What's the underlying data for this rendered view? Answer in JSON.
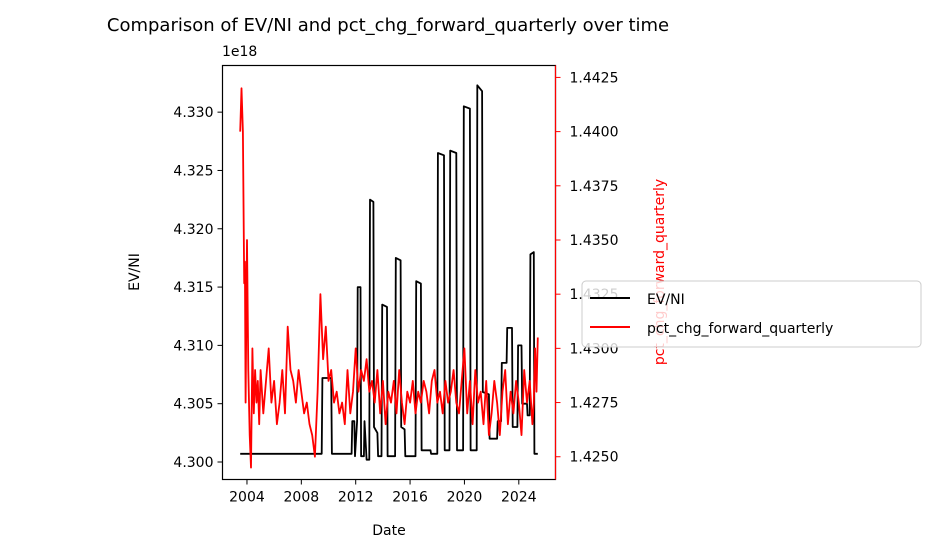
{
  "chart_data": {
    "type": "line",
    "title": "Comparison of EV/NI and pct_chg_forward_quarterly over time",
    "xlabel": "Date",
    "ylabel_left": "EV/NI",
    "ylabel_right": "pct_chg_forward_quarterly",
    "left_axis_offset": "1e18",
    "x_ticks": [
      "2004",
      "2008",
      "2012",
      "2016",
      "2020",
      "2024"
    ],
    "xlim": [
      2002.2,
      2026.7
    ],
    "ylim_left": [
      4.2985,
      4.334
    ],
    "ylim_right": [
      1.42395,
      1.44305
    ],
    "y_ticks_left": [
      "4.300",
      "4.305",
      "4.310",
      "4.315",
      "4.320",
      "4.325",
      "4.330"
    ],
    "y_ticks_right": [
      "1.4250",
      "1.4275",
      "1.4300",
      "1.4325",
      "1.4350",
      "1.4375",
      "1.4400",
      "1.4425"
    ],
    "legend_position": "right-outside",
    "series": [
      {
        "name": "EV/NI",
        "axis": "left",
        "color": "#000000",
        "points": [
          [
            2003.5,
            4.3007
          ],
          [
            2009.5,
            4.3007
          ],
          [
            2009.55,
            4.3072
          ],
          [
            2010.2,
            4.3072
          ],
          [
            2010.25,
            4.3007
          ],
          [
            2011.7,
            4.3007
          ],
          [
            2011.75,
            4.3035
          ],
          [
            2011.9,
            4.3035
          ],
          [
            2011.95,
            4.3005
          ],
          [
            2012.1,
            4.3035
          ],
          [
            2012.15,
            4.315
          ],
          [
            2012.35,
            4.315
          ],
          [
            2012.4,
            4.3005
          ],
          [
            2012.6,
            4.3005
          ],
          [
            2012.65,
            4.3035
          ],
          [
            2012.8,
            4.3002
          ],
          [
            2013.0,
            4.3002
          ],
          [
            2013.05,
            4.3225
          ],
          [
            2013.3,
            4.3223
          ],
          [
            2013.35,
            4.303
          ],
          [
            2013.6,
            4.3025
          ],
          [
            2013.65,
            4.3005
          ],
          [
            2013.9,
            4.3005
          ],
          [
            2013.95,
            4.3135
          ],
          [
            2014.3,
            4.3133
          ],
          [
            2014.35,
            4.3005
          ],
          [
            2014.9,
            4.3005
          ],
          [
            2014.95,
            4.3175
          ],
          [
            2015.3,
            4.3173
          ],
          [
            2015.35,
            4.303
          ],
          [
            2015.6,
            4.3028
          ],
          [
            2015.65,
            4.3005
          ],
          [
            2016.0,
            4.3005
          ],
          [
            2016.05,
            4.3005
          ],
          [
            2016.4,
            4.3005
          ],
          [
            2016.45,
            4.3155
          ],
          [
            2016.8,
            4.3153
          ],
          [
            2016.85,
            4.301
          ],
          [
            2017.5,
            4.301
          ],
          [
            2017.55,
            4.3007
          ],
          [
            2018.0,
            4.3007
          ],
          [
            2018.05,
            4.3265
          ],
          [
            2018.5,
            4.3263
          ],
          [
            2018.55,
            4.301
          ],
          [
            2018.9,
            4.301
          ],
          [
            2018.95,
            4.3267
          ],
          [
            2019.4,
            4.3265
          ],
          [
            2019.45,
            4.301
          ],
          [
            2019.9,
            4.301
          ],
          [
            2019.95,
            4.3305
          ],
          [
            2020.4,
            4.3303
          ],
          [
            2020.45,
            4.301
          ],
          [
            2020.9,
            4.301
          ],
          [
            2020.95,
            4.3323
          ],
          [
            2021.3,
            4.3318
          ],
          [
            2021.35,
            4.306
          ],
          [
            2021.8,
            4.3058
          ],
          [
            2021.85,
            4.302
          ],
          [
            2022.4,
            4.302
          ],
          [
            2022.45,
            4.3035
          ],
          [
            2022.7,
            4.3035
          ],
          [
            2022.75,
            4.3085
          ],
          [
            2023.1,
            4.3085
          ],
          [
            2023.15,
            4.3115
          ],
          [
            2023.5,
            4.3115
          ],
          [
            2023.55,
            4.303
          ],
          [
            2023.9,
            4.303
          ],
          [
            2023.95,
            4.31
          ],
          [
            2024.2,
            4.31
          ],
          [
            2024.25,
            4.305
          ],
          [
            2024.6,
            4.305
          ],
          [
            2024.65,
            4.304
          ],
          [
            2024.8,
            4.304
          ],
          [
            2024.85,
            4.3178
          ],
          [
            2025.1,
            4.318
          ],
          [
            2025.15,
            4.3007
          ],
          [
            2025.4,
            4.3007
          ]
        ]
      },
      {
        "name": "pct_chg_forward_quarterly",
        "axis": "right",
        "color": "#ff0000",
        "points": [
          [
            2003.5,
            1.44
          ],
          [
            2003.6,
            1.442
          ],
          [
            2003.7,
            1.44
          ],
          [
            2003.8,
            1.433
          ],
          [
            2003.85,
            1.434
          ],
          [
            2003.9,
            1.4275
          ],
          [
            2004.0,
            1.435
          ],
          [
            2004.1,
            1.429
          ],
          [
            2004.2,
            1.426
          ],
          [
            2004.3,
            1.4245
          ],
          [
            2004.4,
            1.43
          ],
          [
            2004.5,
            1.427
          ],
          [
            2004.6,
            1.429
          ],
          [
            2004.7,
            1.4275
          ],
          [
            2004.8,
            1.4285
          ],
          [
            2004.9,
            1.4265
          ],
          [
            2005.0,
            1.429
          ],
          [
            2005.2,
            1.427
          ],
          [
            2005.4,
            1.4285
          ],
          [
            2005.6,
            1.43
          ],
          [
            2005.8,
            1.4275
          ],
          [
            2006.0,
            1.4285
          ],
          [
            2006.2,
            1.4265
          ],
          [
            2006.4,
            1.4275
          ],
          [
            2006.6,
            1.429
          ],
          [
            2006.8,
            1.427
          ],
          [
            2007.0,
            1.431
          ],
          [
            2007.2,
            1.429
          ],
          [
            2007.4,
            1.4285
          ],
          [
            2007.6,
            1.4275
          ],
          [
            2007.8,
            1.429
          ],
          [
            2008.0,
            1.428
          ],
          [
            2008.2,
            1.427
          ],
          [
            2008.4,
            1.4275
          ],
          [
            2008.6,
            1.4265
          ],
          [
            2008.8,
            1.426
          ],
          [
            2009.0,
            1.425
          ],
          [
            2009.2,
            1.428
          ],
          [
            2009.4,
            1.4325
          ],
          [
            2009.6,
            1.4295
          ],
          [
            2009.8,
            1.431
          ],
          [
            2010.0,
            1.4285
          ],
          [
            2010.2,
            1.429
          ],
          [
            2010.4,
            1.4275
          ],
          [
            2010.6,
            1.428
          ],
          [
            2010.8,
            1.427
          ],
          [
            2011.0,
            1.4275
          ],
          [
            2011.2,
            1.4265
          ],
          [
            2011.4,
            1.429
          ],
          [
            2011.6,
            1.427
          ],
          [
            2011.8,
            1.428
          ],
          [
            2012.0,
            1.43
          ],
          [
            2012.2,
            1.428
          ],
          [
            2012.4,
            1.429
          ],
          [
            2012.6,
            1.4285
          ],
          [
            2012.8,
            1.4295
          ],
          [
            2013.0,
            1.428
          ],
          [
            2013.2,
            1.4285
          ],
          [
            2013.4,
            1.4275
          ],
          [
            2013.6,
            1.429
          ],
          [
            2013.8,
            1.427
          ],
          [
            2014.0,
            1.4285
          ],
          [
            2014.2,
            1.4265
          ],
          [
            2014.4,
            1.428
          ],
          [
            2014.6,
            1.4275
          ],
          [
            2014.8,
            1.4285
          ],
          [
            2015.0,
            1.427
          ],
          [
            2015.2,
            1.429
          ],
          [
            2015.4,
            1.4275
          ],
          [
            2015.6,
            1.4265
          ],
          [
            2015.8,
            1.428
          ],
          [
            2016.0,
            1.4275
          ],
          [
            2016.2,
            1.4285
          ],
          [
            2016.4,
            1.427
          ],
          [
            2016.6,
            1.428
          ],
          [
            2016.8,
            1.4275
          ],
          [
            2017.0,
            1.4285
          ],
          [
            2017.2,
            1.428
          ],
          [
            2017.4,
            1.427
          ],
          [
            2017.6,
            1.4285
          ],
          [
            2017.8,
            1.429
          ],
          [
            2018.0,
            1.4275
          ],
          [
            2018.2,
            1.428
          ],
          [
            2018.4,
            1.427
          ],
          [
            2018.6,
            1.4285
          ],
          [
            2018.8,
            1.4275
          ],
          [
            2019.0,
            1.428
          ],
          [
            2019.2,
            1.429
          ],
          [
            2019.4,
            1.4275
          ],
          [
            2019.6,
            1.427
          ],
          [
            2019.8,
            1.4285
          ],
          [
            2020.0,
            1.43
          ],
          [
            2020.2,
            1.427
          ],
          [
            2020.4,
            1.4285
          ],
          [
            2020.6,
            1.4265
          ],
          [
            2020.8,
            1.429
          ],
          [
            2021.0,
            1.4275
          ],
          [
            2021.2,
            1.428
          ],
          [
            2021.4,
            1.4265
          ],
          [
            2021.6,
            1.4285
          ],
          [
            2021.8,
            1.426
          ],
          [
            2022.0,
            1.427
          ],
          [
            2022.2,
            1.4285
          ],
          [
            2022.4,
            1.4275
          ],
          [
            2022.6,
            1.426
          ],
          [
            2022.8,
            1.428
          ],
          [
            2023.0,
            1.429
          ],
          [
            2023.2,
            1.4265
          ],
          [
            2023.4,
            1.428
          ],
          [
            2023.6,
            1.427
          ],
          [
            2023.8,
            1.4285
          ],
          [
            2024.0,
            1.4275
          ],
          [
            2024.2,
            1.426
          ],
          [
            2024.4,
            1.429
          ],
          [
            2024.6,
            1.4275
          ],
          [
            2024.8,
            1.4285
          ],
          [
            2025.0,
            1.4265
          ],
          [
            2025.1,
            1.4275
          ],
          [
            2025.2,
            1.43
          ],
          [
            2025.3,
            1.428
          ],
          [
            2025.4,
            1.4305
          ]
        ]
      }
    ]
  }
}
